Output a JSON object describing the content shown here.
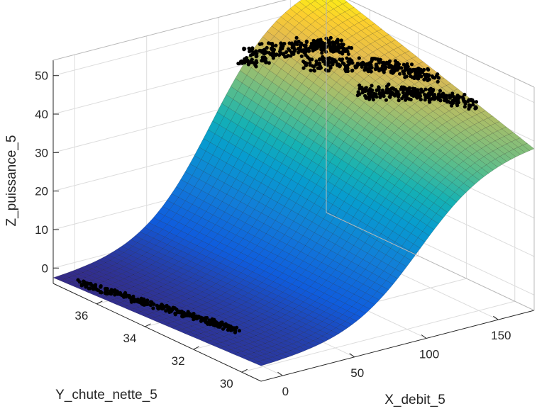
{
  "chart_data": {
    "type": "surface",
    "title": "",
    "xlabel": "X_debit_5",
    "ylabel": "Y_chute_nette_5",
    "zlabel": "Z_puissance_5",
    "x_ticks": [
      "0",
      "50",
      "100",
      "150"
    ],
    "y_ticks": [
      "30",
      "32",
      "34",
      "36"
    ],
    "z_ticks": [
      "0",
      "10",
      "20",
      "30",
      "40",
      "50"
    ],
    "xlim": [
      -15,
      175
    ],
    "ylim": [
      29.2,
      37.8
    ],
    "zlim": [
      -4,
      54
    ],
    "grid": true,
    "colormap": "parula",
    "surface_model": "sigmoid in X_debit_5, linear in Y_chute_nette_5",
    "surface_corners": {
      "x_min_y_min": 0,
      "x_min_y_max": -2.5,
      "x_max_y_min": 38,
      "x_max_y_max": 55
    },
    "scatter_clusters": [
      {
        "x_range": [
          -13,
          5
        ],
        "y_range": [
          36.8,
          31.5
        ],
        "z_approx": -2
      },
      {
        "x_range": [
          118,
          150
        ],
        "y_range": [
          37.8,
          35.5
        ],
        "z_approx": 48
      },
      {
        "x_range": [
          130,
          170
        ],
        "y_range": [
          36,
          33
        ],
        "z_approx": 46
      },
      {
        "x_range": [
          135,
          172
        ],
        "y_range": [
          34,
          31.5
        ],
        "z_approx": 42
      }
    ],
    "scatter_color": "#000000"
  }
}
